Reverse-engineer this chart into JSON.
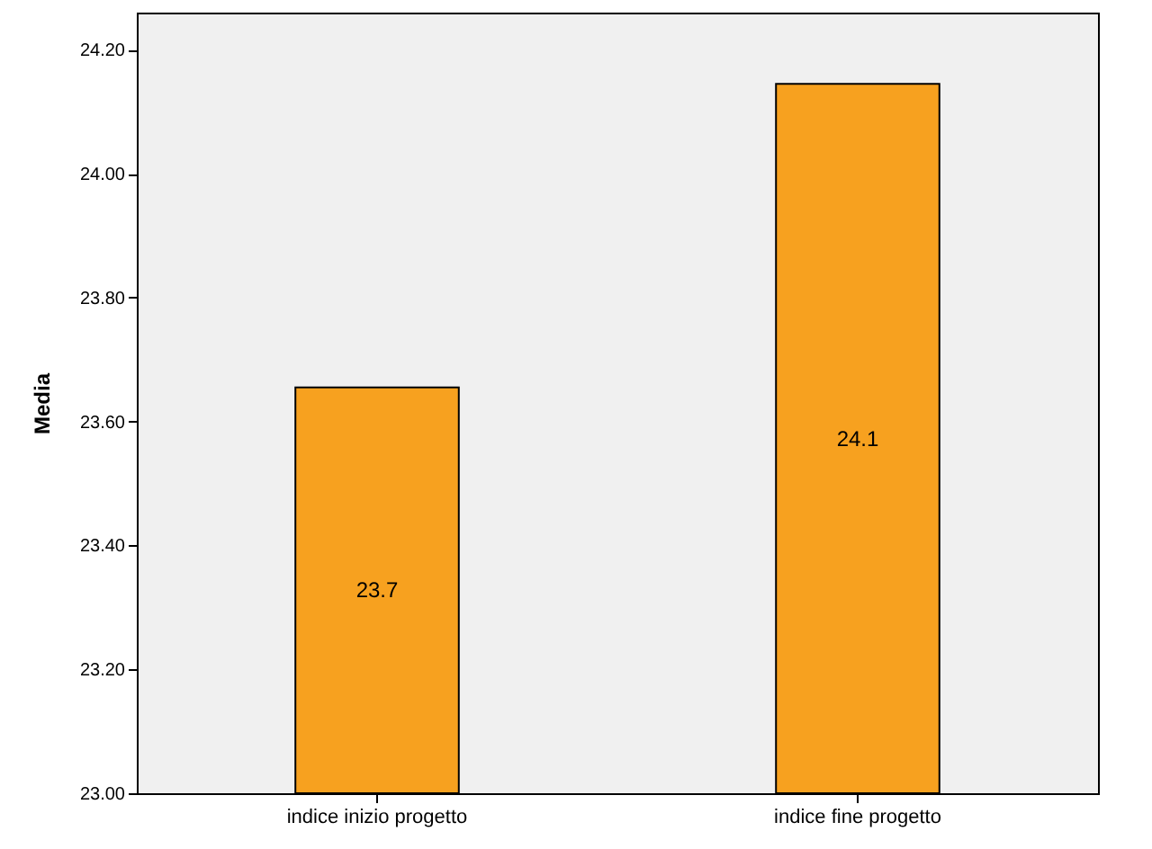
{
  "chart_data": {
    "type": "bar",
    "ylabel": "Media",
    "categories": [
      "indice inizio progetto",
      "indice fine progetto"
    ],
    "values": [
      23.655,
      24.145
    ],
    "value_labels": [
      "23.7",
      "24.1"
    ],
    "color": "#f7a11f",
    "ylim": [
      23,
      24.26
    ],
    "yticks": [
      {
        "value": 23,
        "label": "23.00"
      },
      {
        "value": 23.2,
        "label": "23.20"
      },
      {
        "value": 23.4,
        "label": "23.40"
      },
      {
        "value": 23.6,
        "label": "23.60"
      },
      {
        "value": 23.8,
        "label": "23.80"
      },
      {
        "value": 24,
        "label": "24.00"
      },
      {
        "value": 24.2,
        "label": "24.20"
      }
    ],
    "grid": false
  }
}
